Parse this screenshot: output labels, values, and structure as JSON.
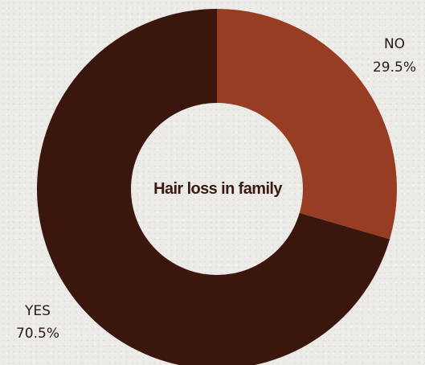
{
  "chart_data": {
    "type": "pie",
    "title": "Hair loss in family",
    "categories": [
      "NO",
      "YES"
    ],
    "values": [
      29.5,
      70.5
    ],
    "value_labels": [
      "29.5%",
      "70.5%"
    ],
    "colors": [
      "#973d24",
      "#3a160d"
    ],
    "donut": true,
    "start_angle": "12 o'clock, clockwise"
  }
}
